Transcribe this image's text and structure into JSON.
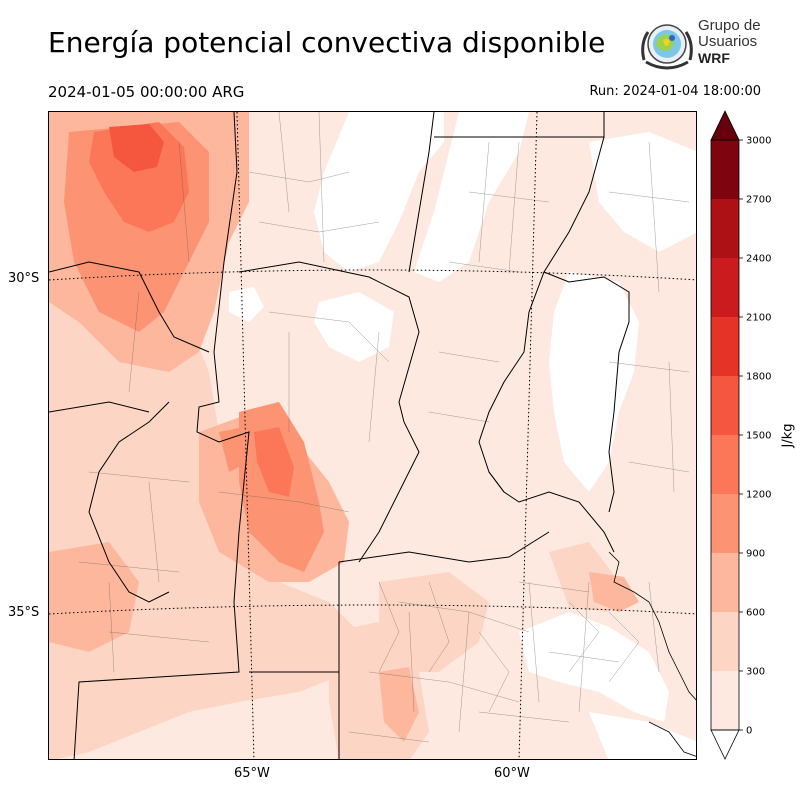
{
  "header": {
    "title": "Energía potencial convectiva disponible",
    "valid_time": "2024-01-05 00:00:00 ARG",
    "run_time": "Run: 2024-01-04 18:00:00"
  },
  "logo": {
    "line1": "Grupo de",
    "line2": "Usuarios",
    "line3": "WRF",
    "icon": "wrf-globe-emblem-icon"
  },
  "map": {
    "latitude_labels": [
      "30°S",
      "35°S"
    ],
    "longitude_labels": [
      "65°W",
      "60°W"
    ],
    "colors": {
      "c0": "#fee9e0",
      "c300": "#fdd5c4",
      "c600": "#fcb79c",
      "c900": "#fc9474",
      "c1200": "#fb7757",
      "c1500": "#f4573d"
    }
  },
  "colorbar": {
    "unit": "J/kg",
    "ticks": [
      "0",
      "300",
      "600",
      "900",
      "1200",
      "1500",
      "1800",
      "2100",
      "2400",
      "2700",
      "3000"
    ],
    "colors": [
      "#fee9e0",
      "#fdd5c4",
      "#fcb79c",
      "#fc9474",
      "#fb7757",
      "#f4573d",
      "#e63328",
      "#cb1b1e",
      "#ad1116",
      "#7e0510"
    ],
    "under_color": "#ffffff",
    "over_color": "#67000d"
  }
}
